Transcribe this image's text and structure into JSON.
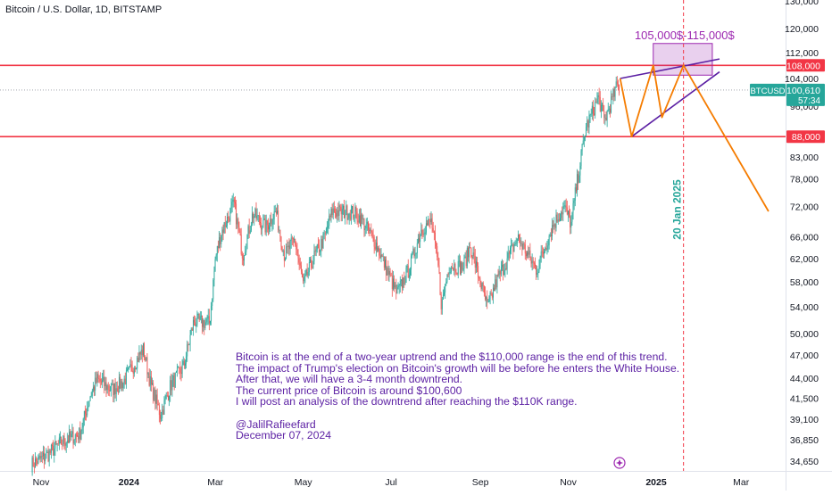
{
  "header": {
    "title": "Bitcoin / U.S. Dollar, 1D, BITSTAMP"
  },
  "chart_data": {
    "type": "candlestick",
    "symbol": "BTCUSD",
    "interval": "1D",
    "exchange": "BITSTAMP",
    "y_scale": "log",
    "ylim": [
      33000,
      133500
    ],
    "y_ticks": [
      {
        "v": 130000,
        "label": "130,000"
      },
      {
        "v": 120000,
        "label": "120,000"
      },
      {
        "v": 112000,
        "label": "112,000"
      },
      {
        "v": 104000,
        "label": "104,000"
      },
      {
        "v": 96000,
        "label": "96,000"
      },
      {
        "v": 83000,
        "label": "83,000"
      },
      {
        "v": 78000,
        "label": "78,000"
      },
      {
        "v": 72000,
        "label": "72,000"
      },
      {
        "v": 66000,
        "label": "66,000"
      },
      {
        "v": 62000,
        "label": "62,000"
      },
      {
        "v": 58000,
        "label": "58,000"
      },
      {
        "v": 54000,
        "label": "54,000"
      },
      {
        "v": 50000,
        "label": "50,000"
      },
      {
        "v": 47000,
        "label": "47,000"
      },
      {
        "v": 44000,
        "label": "44,000"
      },
      {
        "v": 41500,
        "label": "41,500"
      },
      {
        "v": 39100,
        "label": "39,100"
      },
      {
        "v": 36850,
        "label": "36,850"
      },
      {
        "v": 34650,
        "label": "34,650"
      }
    ],
    "x_ticks": [
      {
        "date": "2023-11-01",
        "label": "Nov",
        "bold": false
      },
      {
        "date": "2024-01-01",
        "label": "2024",
        "bold": true
      },
      {
        "date": "2024-03-01",
        "label": "Mar",
        "bold": false
      },
      {
        "date": "2024-05-01",
        "label": "May",
        "bold": false
      },
      {
        "date": "2024-07-01",
        "label": "Jul",
        "bold": false
      },
      {
        "date": "2024-09-01",
        "label": "Sep",
        "bold": false
      },
      {
        "date": "2024-11-01",
        "label": "Nov",
        "bold": false
      },
      {
        "date": "2025-01-01",
        "label": "2025",
        "bold": true
      },
      {
        "date": "2025-03-01",
        "label": "Mar",
        "bold": false
      }
    ],
    "price_path": [
      [
        "2023-10-25",
        34300
      ],
      [
        "2023-11-05",
        35200
      ],
      [
        "2023-11-15",
        36600
      ],
      [
        "2023-11-28",
        37500
      ],
      [
        "2023-12-05",
        41800
      ],
      [
        "2023-12-10",
        43800
      ],
      [
        "2023-12-20",
        42500
      ],
      [
        "2023-12-28",
        43500
      ],
      [
        "2024-01-08",
        46800
      ],
      [
        "2024-01-11",
        47800
      ],
      [
        "2024-01-16",
        43200
      ],
      [
        "2024-01-23",
        39500
      ],
      [
        "2024-01-30",
        43100
      ],
      [
        "2024-02-08",
        45500
      ],
      [
        "2024-02-15",
        51800
      ],
      [
        "2024-02-26",
        51500
      ],
      [
        "2024-03-01",
        62000
      ],
      [
        "2024-03-05",
        66800
      ],
      [
        "2024-03-14",
        72500
      ],
      [
        "2024-03-20",
        62500
      ],
      [
        "2024-03-27",
        70500
      ],
      [
        "2024-04-05",
        67800
      ],
      [
        "2024-04-12",
        71000
      ],
      [
        "2024-04-18",
        62500
      ],
      [
        "2024-04-25",
        65500
      ],
      [
        "2024-05-01",
        57500
      ],
      [
        "2024-05-08",
        62000
      ],
      [
        "2024-05-16",
        66000
      ],
      [
        "2024-05-21",
        71000
      ],
      [
        "2024-06-05",
        70800
      ],
      [
        "2024-06-10",
        69500
      ],
      [
        "2024-06-20",
        65000
      ],
      [
        "2024-07-05",
        56000
      ],
      [
        "2024-07-14",
        60500
      ],
      [
        "2024-07-22",
        67500
      ],
      [
        "2024-07-29",
        69000
      ],
      [
        "2024-08-03",
        60000
      ],
      [
        "2024-08-05",
        54000
      ],
      [
        "2024-08-10",
        60800
      ],
      [
        "2024-08-20",
        60500
      ],
      [
        "2024-08-25",
        64200
      ],
      [
        "2024-09-06",
        53800
      ],
      [
        "2024-09-12",
        58000
      ],
      [
        "2024-09-27",
        65800
      ],
      [
        "2024-10-10",
        60000
      ],
      [
        "2024-10-21",
        68000
      ],
      [
        "2024-10-29",
        72000
      ],
      [
        "2024-11-03",
        68500
      ],
      [
        "2024-11-06",
        75000
      ],
      [
        "2024-11-13",
        90000
      ],
      [
        "2024-11-22",
        98500
      ],
      [
        "2024-11-26",
        92000
      ],
      [
        "2024-12-05",
        102000
      ],
      [
        "2024-12-07",
        100610
      ]
    ],
    "current_price": {
      "label": "BTCUSD",
      "value": "100,610",
      "countdown": "57:34"
    },
    "horizontal_levels": [
      {
        "value": 108000,
        "label": "108,000",
        "color": "#f23645"
      },
      {
        "value": 88000,
        "label": "88,000",
        "color": "#f23645"
      }
    ],
    "target_zone": {
      "label": "105,000$-115,000$",
      "low": 105000,
      "high": 115000,
      "from": "2024-12-30",
      "to": "2025-02-09",
      "color": "#9c27b0"
    },
    "vertical_marker": {
      "date": "2025-01-20",
      "label": "20 Jan 2025",
      "color": "#f23645"
    },
    "projection_path": [
      [
        "2024-12-07",
        104000
      ],
      [
        "2024-12-15",
        88000
      ],
      [
        "2024-12-30",
        108000
      ],
      [
        "2025-01-05",
        93000
      ],
      [
        "2025-01-20",
        108000
      ],
      [
        "2025-03-20",
        71000
      ]
    ],
    "wedge_lines": [
      {
        "from": [
          "2024-12-07",
          104000
        ],
        "to": [
          "2025-02-14",
          110000
        ]
      },
      {
        "from": [
          "2024-12-15",
          88000
        ],
        "to": [
          "2025-02-14",
          106000
        ]
      }
    ]
  },
  "annotation": {
    "text": "Bitcoin is at the end of a two-year uptrend and the $110,000 range is the end of this trend.\nThe impact of Trump's election on Bitcoin's growth will be before he enters the White House.\nAfter that, we will have a 3-4 month downtrend.\nThe current price of Bitcoin is around $100,600\nI will post an analysis of the downtrend after reaching the $110K range.\n\n@JalilRafieefard\nDecember 07, 2024"
  },
  "colors": {
    "up": "#26a69a",
    "down": "#ef5350",
    "level": "#f23645",
    "zone": "#9c27b0",
    "projection": "#f57c00",
    "wedge": "#5b1fa3",
    "marker_label": "#26a69a"
  }
}
